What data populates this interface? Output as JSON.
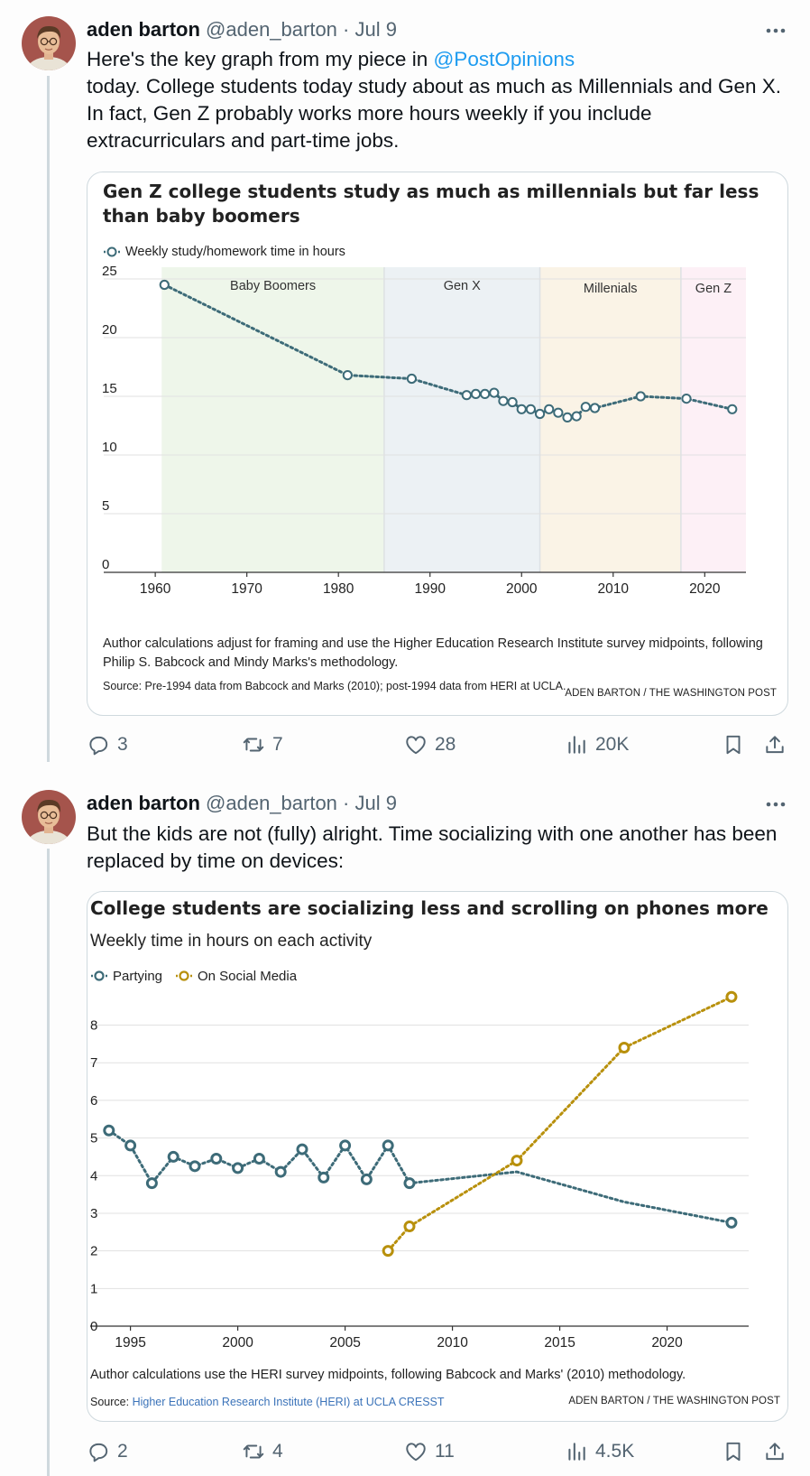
{
  "tweets": [
    {
      "name": "aden barton",
      "handle": "@aden_barton",
      "date": "Jul 9",
      "text_before_mention": "Here's the key graph from my piece in ",
      "mention": "@PostOpinions",
      "text_after_mention": "today. College students today study about as much as Millennials and Gen X. In fact, Gen Z probably works more hours weekly if you include extracurriculars and part-time jobs.",
      "stats": {
        "replies": "3",
        "reposts": "7",
        "likes": "28",
        "views": "20K"
      }
    },
    {
      "name": "aden barton",
      "handle": "@aden_barton",
      "date": "Jul 9",
      "text": "But the kids are not (fully) alright. Time socializing with one another has been replaced by time on devices:",
      "stats": {
        "replies": "2",
        "reposts": "4",
        "likes": "11",
        "views": "4.5K"
      }
    }
  ],
  "chart_data": [
    {
      "type": "line",
      "title": "Gen Z college students study as much as millennials but far less than baby boomers",
      "legend": [
        "Weekly study/homework time in hours"
      ],
      "legend_position": "top-left",
      "bands": [
        {
          "label": "Baby Boomers",
          "from": 1960.7,
          "to": 1985,
          "color": "#eef6ea"
        },
        {
          "label": "Gen X",
          "from": 1985,
          "to": 2002,
          "color": "#ecf1f4"
        },
        {
          "label": "Millenials",
          "from": 2002,
          "to": 2017.4,
          "color": "#faf3e6"
        },
        {
          "label": "Gen Z",
          "from": 2017.4,
          "to": 2024.5,
          "color": "#fdf0f6"
        }
      ],
      "xlim": [
        1952.6,
        2024.5
      ],
      "ylim": [
        0,
        26
      ],
      "xticks": [
        1960,
        1970,
        1980,
        1990,
        2000,
        2010,
        2020
      ],
      "yticks": [
        0,
        5,
        10,
        15,
        20,
        25
      ],
      "grid": true,
      "series": [
        {
          "name": "Weekly study/homework time in hours",
          "color": "#3d6b78",
          "x": [
            1961,
            1981,
            1988,
            1994,
            1995,
            1996,
            1997,
            1998,
            1999,
            2000,
            2001,
            2002,
            2003,
            2004,
            2005,
            2006,
            2007,
            2008,
            2013,
            2018,
            2023
          ],
          "y": [
            24.5,
            16.8,
            16.5,
            15.1,
            15.2,
            15.2,
            15.3,
            14.6,
            14.5,
            13.9,
            13.9,
            13.5,
            13.9,
            13.6,
            13.2,
            13.3,
            14.1,
            14.0,
            15.0,
            14.8,
            13.9
          ]
        }
      ],
      "note": "Author calculations adjust for framing and use the Higher Education Research Institute survey midpoints, following Philip S. Babcock and Mindy Marks's methodology.",
      "source": "Source: Pre-1994 data from Babcock and Marks (2010); post-1994 data from HERI at UCLA.",
      "credit": "ADEN BARTON / THE WASHINGTON POST"
    },
    {
      "type": "line",
      "title": "College students are socializing less and scrolling on phones more",
      "subtitle": "Weekly time in hours on each activity",
      "legend": [
        "Partying",
        "On Social Media"
      ],
      "legend_position": "top-left",
      "xlim": [
        1993,
        2023.8
      ],
      "ylim": [
        0,
        8.9
      ],
      "xticks": [
        1995,
        2000,
        2005,
        2010,
        2015,
        2020
      ],
      "yticks": [
        0,
        1,
        2,
        3,
        4,
        5,
        6,
        7,
        8
      ],
      "grid": true,
      "series": [
        {
          "name": "Partying",
          "color": "#3d6b78",
          "x": [
            1994,
            1995,
            1996,
            1997,
            1998,
            1999,
            2000,
            2001,
            2002,
            2003,
            2004,
            2005,
            2006,
            2007,
            2008,
            2013,
            2018,
            2023
          ],
          "y": [
            5.2,
            4.8,
            3.8,
            4.5,
            4.25,
            4.45,
            4.2,
            4.45,
            4.1,
            4.7,
            3.95,
            4.8,
            3.9,
            4.8,
            3.8,
            4.1,
            3.3,
            2.75
          ],
          "markers_x": [
            1994,
            1995,
            1996,
            1997,
            1998,
            1999,
            2000,
            2001,
            2002,
            2003,
            2004,
            2005,
            2006,
            2007,
            2008,
            2023
          ]
        },
        {
          "name": "On Social Media",
          "color": "#b8900c",
          "x": [
            2007,
            2008,
            2013,
            2018,
            2023
          ],
          "y": [
            2.0,
            2.65,
            4.4,
            7.4,
            8.75
          ]
        }
      ],
      "note": "Author calculations use the HERI survey midpoints, following Babcock and Marks' (2010) methodology.",
      "source_prefix": "Source: ",
      "source_link": "Higher Education Research Institute (HERI) at UCLA CRESST",
      "credit": "ADEN BARTON / THE WASHINGTON POST"
    }
  ]
}
